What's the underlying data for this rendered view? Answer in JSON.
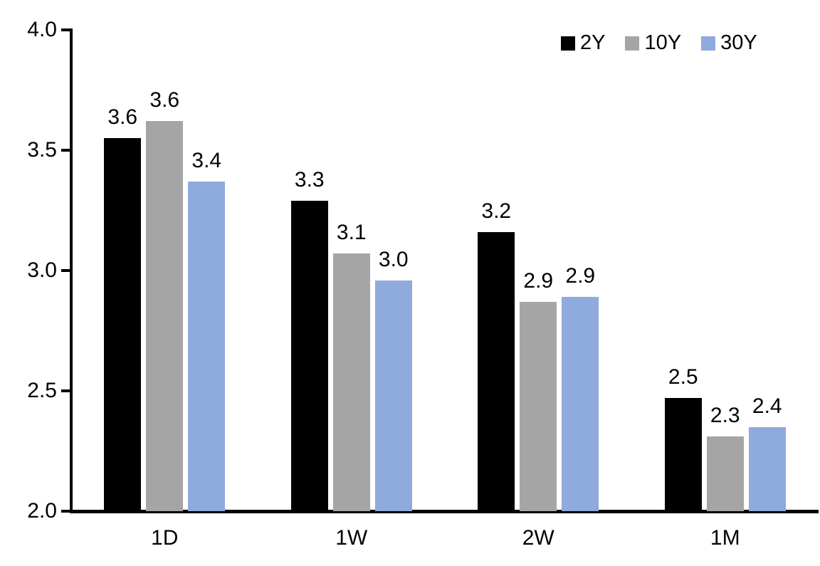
{
  "chart_data": {
    "type": "bar",
    "title": "",
    "xlabel": "",
    "ylabel": "",
    "categories": [
      "1D",
      "1W",
      "2W",
      "1M"
    ],
    "series": [
      {
        "name": "2Y",
        "color": "#000000",
        "values": [
          3.55,
          3.29,
          3.16,
          2.47
        ],
        "labels": [
          "3.6",
          "3.3",
          "3.2",
          "2.5"
        ]
      },
      {
        "name": "10Y",
        "color": "#A5A5A5",
        "values": [
          3.62,
          3.07,
          2.87,
          2.31
        ],
        "labels": [
          "3.6",
          "3.1",
          "2.9",
          "2.3"
        ]
      },
      {
        "name": "30Y",
        "color": "#8FAADC",
        "values": [
          3.37,
          2.96,
          2.89,
          2.35
        ],
        "labels": [
          "3.4",
          "3.0",
          "2.9",
          "2.4"
        ]
      }
    ],
    "ylim": [
      2.0,
      4.0
    ],
    "yticks": [
      "2.0",
      "2.5",
      "3.0",
      "3.5",
      "4.0"
    ],
    "ytick_values": [
      2.0,
      2.5,
      3.0,
      3.5,
      4.0
    ],
    "grid": false,
    "legend_position": "top-right",
    "data_labels": true,
    "axis_color": "#000000",
    "background_color": "#FFFFFF"
  }
}
